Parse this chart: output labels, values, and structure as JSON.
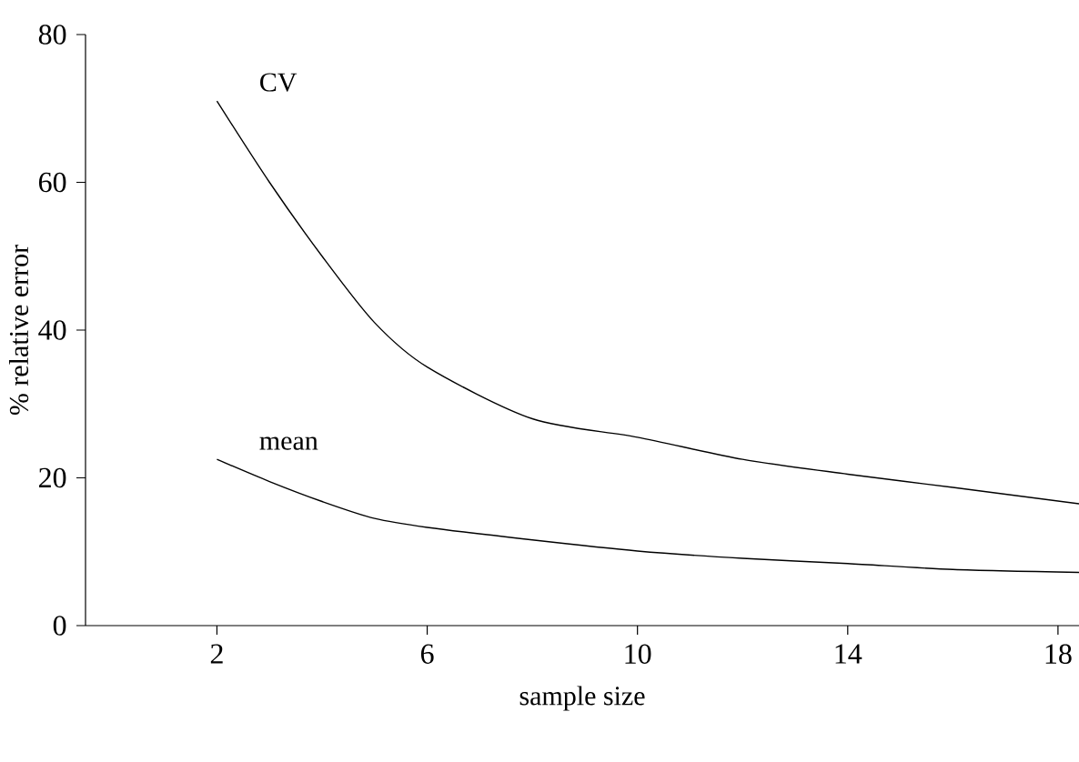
{
  "chart_data": {
    "type": "line",
    "xlabel": "sample size",
    "ylabel": "% relative error",
    "x": [
      2,
      3,
      4,
      5,
      6,
      8,
      10,
      12,
      14,
      16,
      18.4
    ],
    "series": [
      {
        "name": "CV",
        "color": "#000000",
        "values": [
          71,
          60,
          50,
          41,
          35,
          28,
          25.5,
          22.5,
          20.5,
          18.7,
          16.5
        ]
      },
      {
        "name": "mean",
        "color": "#000000",
        "values": [
          22.5,
          19.5,
          16.8,
          14.5,
          13.3,
          11.6,
          10.1,
          9.1,
          8.4,
          7.6,
          7.2
        ]
      }
    ],
    "xlim": [
      -0.5,
      18.4
    ],
    "ylim": [
      0,
      80
    ],
    "xticks": [
      2,
      6,
      10,
      14,
      18
    ],
    "yticks": [
      0,
      20,
      40,
      60,
      80
    ],
    "grid": false,
    "legend": false,
    "marker": "none",
    "line_style": "solid"
  }
}
